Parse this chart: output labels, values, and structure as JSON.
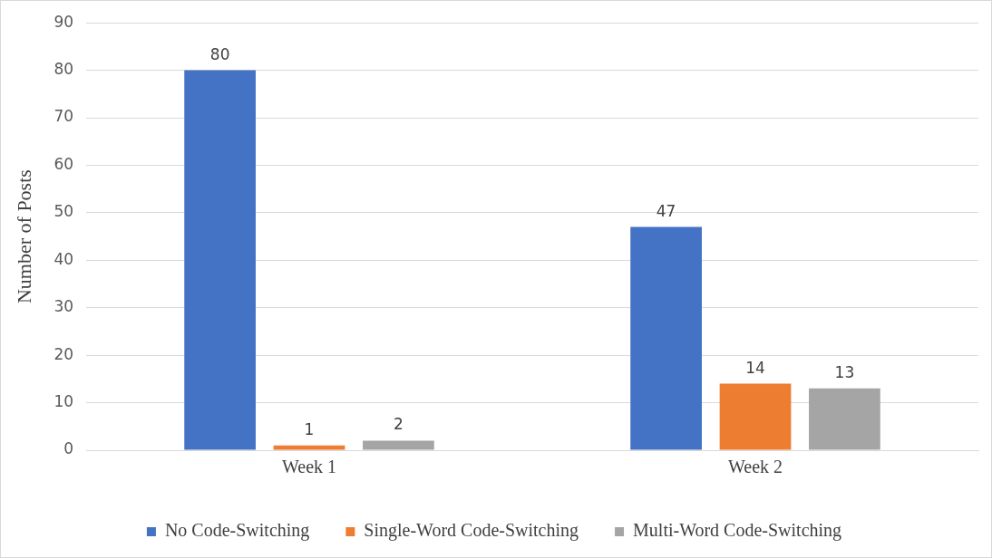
{
  "chart_data": {
    "type": "bar",
    "ylabel": "Number of Posts",
    "categories": [
      "Week 1",
      "Week 2"
    ],
    "series": [
      {
        "name": "No Code-Switching",
        "color": "#4472c4",
        "values": [
          80,
          47
        ]
      },
      {
        "name": "Single-Word Code-Switching",
        "color": "#ed7d31",
        "values": [
          1,
          14
        ]
      },
      {
        "name": "Multi-Word Code-Switching",
        "color": "#a5a5a5",
        "values": [
          2,
          13
        ]
      }
    ],
    "ylim": [
      0,
      90
    ],
    "yticks": [
      0,
      10,
      20,
      30,
      40,
      50,
      60,
      70,
      80,
      90
    ],
    "grid": "y",
    "legend": "bottom",
    "data_labels": true
  }
}
